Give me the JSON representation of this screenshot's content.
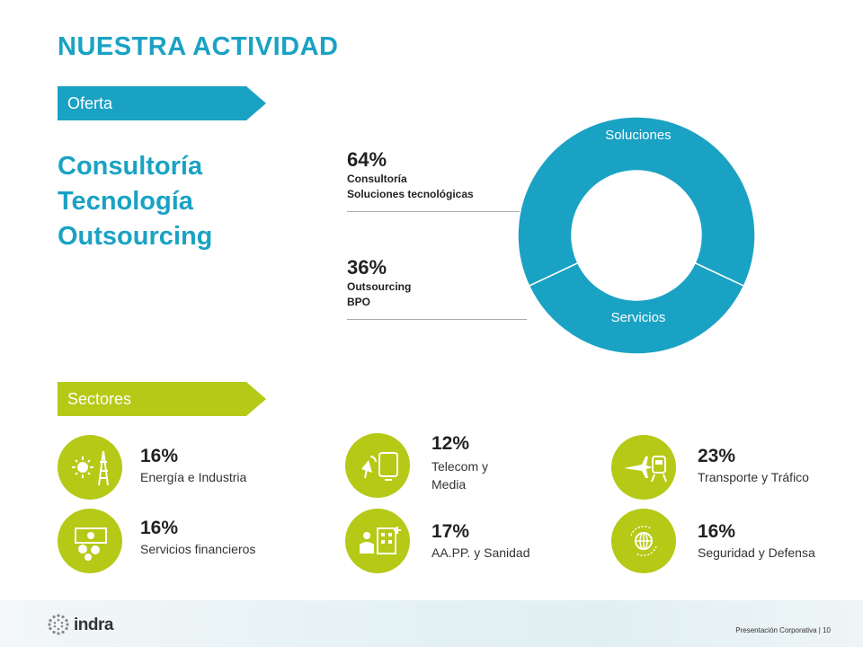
{
  "title": "NUESTRA ACTIVIDAD",
  "offer": {
    "tag": "Oferta",
    "items": [
      "Consultoría",
      "Tecnología",
      "Outsourcing"
    ]
  },
  "donut": {
    "segments": [
      {
        "label": "Soluciones",
        "value": 64,
        "color": "#1aa2c4"
      },
      {
        "label": "Servicios",
        "value": 36,
        "color": "#1aa2c4"
      }
    ]
  },
  "stats": [
    {
      "pct": "64%",
      "lines": [
        "Consultoría",
        "Soluciones tecnológicas"
      ]
    },
    {
      "pct": "36%",
      "lines": [
        "Outsourcing",
        "BPO"
      ]
    }
  ],
  "sectors_tag": "Sectores",
  "sectors": [
    {
      "pct": "16%",
      "label": "Energía e Industria",
      "icon": "energy-icon"
    },
    {
      "pct": "16%",
      "label": "Servicios financieros",
      "icon": "finance-icon"
    },
    {
      "pct": "12%",
      "label": "Telecom y Media",
      "label_lines": [
        "Telecom y",
        "Media"
      ],
      "icon": "telecom-icon"
    },
    {
      "pct": "17%",
      "label": "AA.PP. y Sanidad",
      "icon": "public-health-icon"
    },
    {
      "pct": "23%",
      "label": "Transporte y Tráfico",
      "icon": "transport-icon"
    },
    {
      "pct": "16%",
      "label": "Seguridad y Defensa",
      "icon": "security-icon"
    }
  ],
  "footer": {
    "brand": "indra",
    "text": "Presentación Corporativa",
    "page": "10"
  },
  "colors": {
    "accent_blue": "#1aa2c4",
    "accent_green": "#b5c916"
  }
}
